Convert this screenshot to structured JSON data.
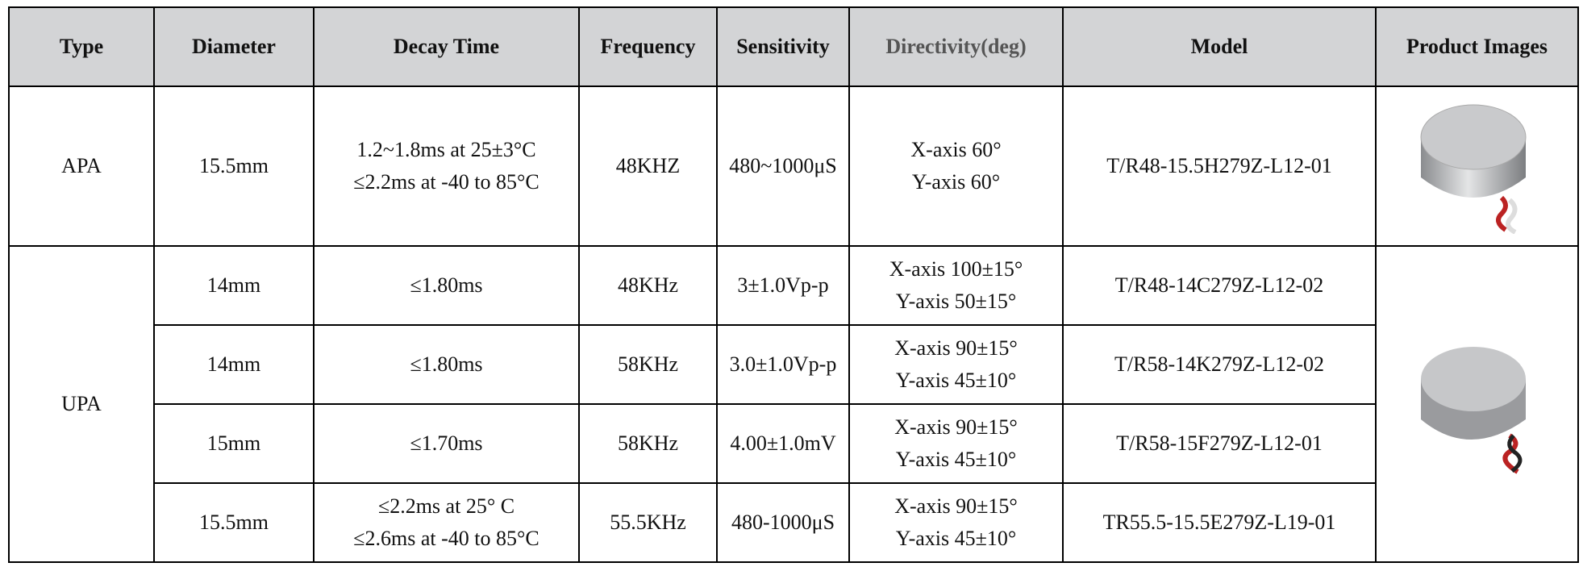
{
  "table": {
    "header": [
      "Type",
      "Diameter",
      "Decay Time",
      "Frequency",
      "Sensitivity",
      "Directivity(deg)",
      "Model",
      "Product Images"
    ],
    "rows": [
      [
        "APA",
        "15.5mm",
        [
          "1.2~1.8ms at 25±3°C",
          "≤2.2ms at -40 to 85°C"
        ],
        "48KHZ",
        "480~1000μS",
        [
          "X-axis 60°",
          "Y-axis 60°"
        ],
        "T/R48-15.5H279Z-L12-01"
      ],
      [
        "UPA",
        "14mm",
        "≤1.80ms",
        "48KHz",
        "3±1.0Vp-p",
        [
          "X-axis 100±15°",
          "Y-axis 50±15°"
        ],
        "T/R48-14C279Z-L12-02"
      ],
      [
        "14mm",
        "≤1.80ms",
        "58KHz",
        "3.0±1.0Vp-p",
        [
          "X-axis 90±15°",
          "Y-axis 45±10°"
        ],
        "T/R58-14K279Z-L12-02"
      ],
      [
        "15mm",
        "≤1.70ms",
        "58KHz",
        "4.00±1.0mV",
        [
          "X-axis 90±15°",
          "Y-axis 45±10°"
        ],
        "T/R58-15F279Z-L12-01"
      ],
      [
        "15.5mm",
        [
          "≤2.2ms at 25° C",
          "≤2.6ms at -40 to 85°C"
        ],
        "55.5KHz",
        "480-1000μS",
        [
          "X-axis 90±15°",
          "Y-axis 45±10°"
        ],
        "TR55.5-15.5E279Z-L19-01"
      ]
    ]
  }
}
